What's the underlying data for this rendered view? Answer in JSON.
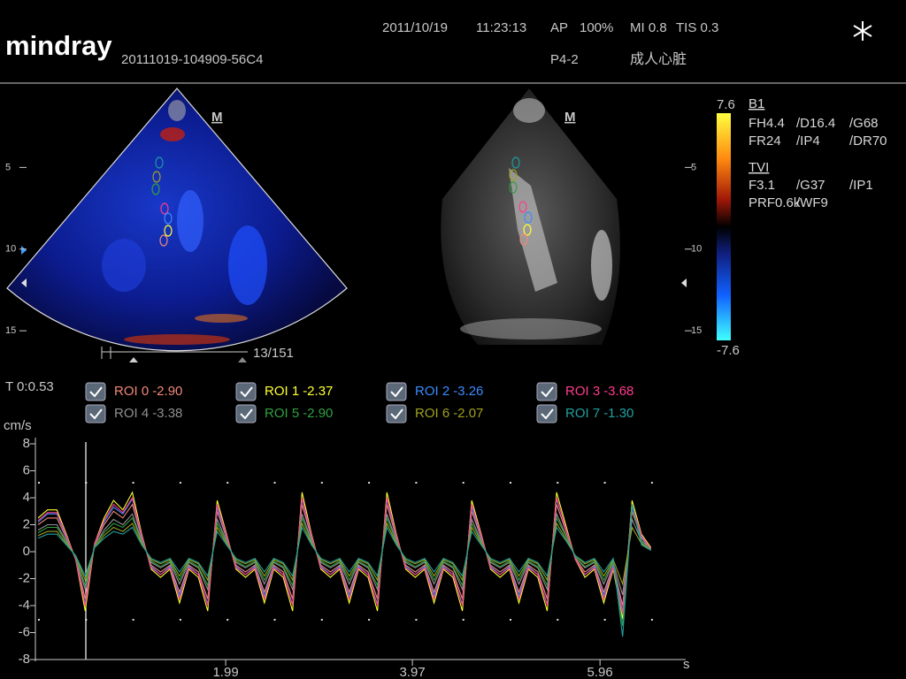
{
  "header": {
    "brand": "mindray",
    "study_id": "20111019-104909-56C4",
    "date": "2011/10/19",
    "time": "11:23:13",
    "preset": "AP",
    "power": "100%",
    "mi": "MI 0.8",
    "tis": "TIS 0.3",
    "probe": "P4-2",
    "exam": "成人心脏"
  },
  "images": {
    "left_marker": "M",
    "right_marker": "M",
    "frame": "13/151",
    "depth_ticks": [
      5,
      10,
      15
    ],
    "depth_lim": [
      0,
      16.4
    ]
  },
  "color_bar": {
    "range": [
      -7.6,
      7.6
    ]
  },
  "params": {
    "b_title": "B1",
    "b_rows": [
      [
        "FH4.4",
        "/D16.4",
        "/G68"
      ],
      [
        "FR24",
        "/IP4",
        "/DR70"
      ]
    ],
    "tvi_title": "TVI",
    "tvi_rows": [
      [
        "F3.1",
        "/G37",
        "/IP1"
      ],
      [
        "PRF0.6k",
        "/WF9"
      ]
    ]
  },
  "cursor_time": "T 0:0.53",
  "chart_data": {
    "type": "line",
    "y_label": "cm/s",
    "x_label": "s",
    "xlim": [
      0,
      6.85
    ],
    "ylim": [
      -8,
      8
    ],
    "xticks": [
      1.99,
      3.97,
      5.96
    ],
    "yticks": [
      -8,
      -6,
      -4,
      -2,
      0,
      2,
      4,
      6,
      8
    ],
    "x": [
      0,
      0.1,
      0.2,
      0.3,
      0.4,
      0.5,
      0.6,
      0.7,
      0.8,
      0.9,
      1,
      1.1,
      1.2,
      1.3,
      1.4,
      1.5,
      1.6,
      1.7,
      1.8,
      1.9,
      2,
      2.1,
      2.2,
      2.3,
      2.4,
      2.5,
      2.6,
      2.7,
      2.8,
      2.9,
      3,
      3.1,
      3.2,
      3.3,
      3.4,
      3.5,
      3.6,
      3.7,
      3.8,
      3.9,
      4,
      4.1,
      4.2,
      4.3,
      4.4,
      4.5,
      4.6,
      4.7,
      4.8,
      4.9,
      5,
      5.1,
      5.2,
      5.3,
      5.4,
      5.5,
      5.6,
      5.7,
      5.8,
      5.9,
      6,
      6.1,
      6.2,
      6.3,
      6.4,
      6.5
    ],
    "series": [
      {
        "name": "ROI 0",
        "color": "#f08878",
        "cursor": {
          "value": -2.9,
          "label": "-2.90"
        },
        "values": [
          2,
          2.5,
          2.5,
          1,
          -0.5,
          -3.5,
          0.5,
          2,
          3,
          2.5,
          3.5,
          1,
          -1,
          -1.5,
          -1,
          -3,
          -1,
          -1.5,
          -3.5,
          3,
          1,
          -1,
          -1.5,
          -1,
          -3,
          -1,
          -1.5,
          -3.5,
          3.5,
          1,
          -1,
          -1.5,
          -1,
          -3,
          -1,
          -1.5,
          -3.5,
          3.5,
          1,
          -1,
          -1.5,
          -1,
          -3,
          -1,
          -1.5,
          -3.5,
          3,
          1,
          -1,
          -1.5,
          -1,
          -3,
          -1,
          -1.5,
          -3.5,
          3.5,
          1.5,
          -0.5,
          -1.5,
          -1,
          -3,
          -1,
          -4,
          3,
          1,
          0.2
        ]
      },
      {
        "name": "ROI 1",
        "color": "#ffff30",
        "cursor": {
          "value": -2.37,
          "label": "-2.37"
        },
        "values": [
          2.5,
          3.1,
          3.1,
          1.3,
          -0.6,
          -4.4,
          0.6,
          2.5,
          3.8,
          3.1,
          4.4,
          1.3,
          -1.3,
          -1.9,
          -1.3,
          -3.8,
          -1.3,
          -1.9,
          -4.4,
          3.8,
          1.3,
          -1.3,
          -1.9,
          -1.3,
          -3.8,
          -1.3,
          -1.9,
          -4.4,
          4.4,
          1.3,
          -1.3,
          -1.9,
          -1.3,
          -3.8,
          -1.3,
          -1.9,
          -4.4,
          4.4,
          1.3,
          -1.3,
          -1.9,
          -1.3,
          -3.8,
          -1.3,
          -1.9,
          -4.4,
          3.8,
          1.3,
          -1.3,
          -1.9,
          -1.3,
          -3.8,
          -1.3,
          -1.9,
          -4.4,
          4.4,
          1.9,
          -0.6,
          -1.9,
          -1.3,
          -3.8,
          -1.3,
          -5,
          3.8,
          1.3,
          0.3
        ]
      },
      {
        "name": "ROI 2",
        "color": "#3a8cff",
        "cursor": {
          "value": -3.26,
          "label": "-3.26"
        },
        "values": [
          2.2,
          2.8,
          2.8,
          1.1,
          -0.6,
          -3.9,
          0.6,
          2.2,
          3.3,
          2.8,
          3.9,
          1.1,
          -1.1,
          -1.7,
          -1.1,
          -3.3,
          -1.1,
          -1.7,
          -3.9,
          3.3,
          1.1,
          -1.1,
          -1.7,
          -1.1,
          -3.3,
          -1.1,
          -1.7,
          -3.9,
          3.9,
          1.1,
          -1.1,
          -1.7,
          -1.1,
          -3.3,
          -1.1,
          -1.7,
          -3.9,
          3.9,
          1.1,
          -1.1,
          -1.7,
          -1.1,
          -3.3,
          -1.1,
          -1.7,
          -3.9,
          3.3,
          1.1,
          -1.1,
          -1.7,
          -1.1,
          -3.3,
          -1.1,
          -1.7,
          -3.9,
          3.9,
          1.7,
          -0.6,
          -1.7,
          -1.1,
          -3.3,
          -1.1,
          -4.4,
          3.3,
          1.1,
          0.2
        ]
      },
      {
        "name": "ROI 3",
        "color": "#ff3c8c",
        "cursor": {
          "value": -3.68,
          "label": "-3.68"
        },
        "values": [
          2.3,
          2.9,
          2.9,
          1.2,
          -0.6,
          -4,
          0.6,
          2.3,
          3.5,
          2.9,
          4,
          1.2,
          -1.2,
          -1.7,
          -1.2,
          -3.5,
          -1.2,
          -1.7,
          -4,
          3.5,
          1.2,
          -1.2,
          -1.7,
          -1.2,
          -3.5,
          -1.2,
          -1.7,
          -4,
          4,
          1.2,
          -1.2,
          -1.7,
          -1.2,
          -3.5,
          -1.2,
          -1.7,
          -4,
          4,
          1.2,
          -1.2,
          -1.7,
          -1.2,
          -3.5,
          -1.2,
          -1.7,
          -4,
          3.5,
          1.2,
          -1.2,
          -1.7,
          -1.2,
          -3.5,
          -1.2,
          -1.7,
          -4,
          4,
          1.7,
          -0.6,
          -1.7,
          -1.2,
          -3.5,
          -1.2,
          -4.6,
          3.5,
          1.2,
          0.2
        ]
      },
      {
        "name": "ROI 4",
        "color": "#909090",
        "cursor": {
          "value": -3.38,
          "label": "-3.38"
        },
        "values": [
          1.6,
          2,
          2,
          0.8,
          -0.4,
          -2.8,
          0.4,
          1.6,
          2.4,
          2,
          2.8,
          0.8,
          -0.8,
          -1.2,
          -0.8,
          -2.4,
          -0.8,
          -1.2,
          -2.8,
          2.4,
          0.8,
          -0.8,
          -1.2,
          -0.8,
          -2.4,
          -0.8,
          -1.2,
          -2.8,
          2.8,
          0.8,
          -0.8,
          -1.2,
          -0.8,
          -2.4,
          -0.8,
          -1.2,
          -2.8,
          2.8,
          0.8,
          -0.8,
          -1.2,
          -0.8,
          -2.4,
          -0.8,
          -1.2,
          -2.8,
          2.4,
          0.8,
          -0.8,
          -1.2,
          -0.8,
          -2.4,
          -0.8,
          -1.2,
          -2.8,
          2.8,
          1.2,
          -0.4,
          -1.2,
          -0.8,
          -2.4,
          -0.8,
          -3.2,
          2.4,
          0.8,
          0.2
        ]
      },
      {
        "name": "ROI 5",
        "color": "#30a040",
        "cursor": {
          "value": -2.9,
          "label": "-2.90"
        },
        "values": [
          1.4,
          1.8,
          1.8,
          0.7,
          -0.4,
          -2.5,
          0.4,
          1.4,
          2.1,
          1.8,
          2.5,
          0.7,
          -0.7,
          -1.1,
          -0.7,
          -2.1,
          -0.7,
          -1.1,
          -2.5,
          2.1,
          0.7,
          -0.7,
          -1.1,
          -0.7,
          -2.1,
          -0.7,
          -1.1,
          -2.5,
          2.5,
          0.7,
          -0.7,
          -1.1,
          -0.7,
          -2.1,
          -0.7,
          -1.1,
          -2.5,
          2.5,
          0.7,
          -0.7,
          -1.1,
          -0.7,
          -2.1,
          -0.7,
          -1.1,
          -2.5,
          2.1,
          0.7,
          -0.7,
          -1.1,
          -0.7,
          -2.1,
          -0.7,
          -1.1,
          -2.5,
          2.5,
          1.1,
          -0.4,
          -1.1,
          -0.7,
          -2.1,
          -0.7,
          -5.5,
          3.5,
          0.7,
          0.1
        ]
      },
      {
        "name": "ROI 6",
        "color": "#a0a020",
        "cursor": {
          "value": -2.07,
          "label": "-2.07"
        },
        "values": [
          1.2,
          1.5,
          1.5,
          0.6,
          -0.3,
          -2.1,
          0.3,
          1.2,
          1.8,
          1.5,
          2.1,
          0.6,
          -0.6,
          -0.9,
          -0.6,
          -1.8,
          -0.6,
          -0.9,
          -2.1,
          1.8,
          0.6,
          -0.6,
          -0.9,
          -0.6,
          -1.8,
          -0.6,
          -0.9,
          -2.1,
          2.1,
          0.6,
          -0.6,
          -0.9,
          -0.6,
          -1.8,
          -0.6,
          -0.9,
          -2.1,
          2.1,
          0.6,
          -0.6,
          -0.9,
          -0.6,
          -1.8,
          -0.6,
          -0.9,
          -2.1,
          1.8,
          0.6,
          -0.6,
          -0.9,
          -0.6,
          -1.8,
          -0.6,
          -0.9,
          -2.1,
          2.1,
          0.9,
          -0.3,
          -0.9,
          -0.6,
          -1.8,
          -0.6,
          -2.4,
          1.8,
          0.6,
          0.1
        ]
      },
      {
        "name": "ROI 7",
        "color": "#20a0a0",
        "cursor": {
          "value": -1.3,
          "label": "-1.30"
        },
        "values": [
          1,
          1.3,
          1.3,
          0.5,
          -0.3,
          -1.8,
          0.3,
          1,
          1.5,
          1.3,
          1.8,
          0.5,
          -0.5,
          -0.8,
          -0.5,
          -1.5,
          -0.5,
          -0.8,
          -1.8,
          1.5,
          0.5,
          -0.5,
          -0.8,
          -0.5,
          -1.5,
          -0.5,
          -0.8,
          -1.8,
          1.8,
          0.5,
          -0.5,
          -0.8,
          -0.5,
          -1.5,
          -0.5,
          -0.8,
          -1.8,
          1.8,
          0.5,
          -0.5,
          -0.8,
          -0.5,
          -1.5,
          -0.5,
          -0.8,
          -1.8,
          1.5,
          0.5,
          -0.5,
          -0.8,
          -0.5,
          -1.5,
          -0.5,
          -0.8,
          -1.8,
          1.8,
          0.8,
          -0.3,
          -0.8,
          -0.5,
          -1.5,
          -0.5,
          -6.3,
          3.5,
          0.5,
          0.1
        ]
      }
    ]
  }
}
